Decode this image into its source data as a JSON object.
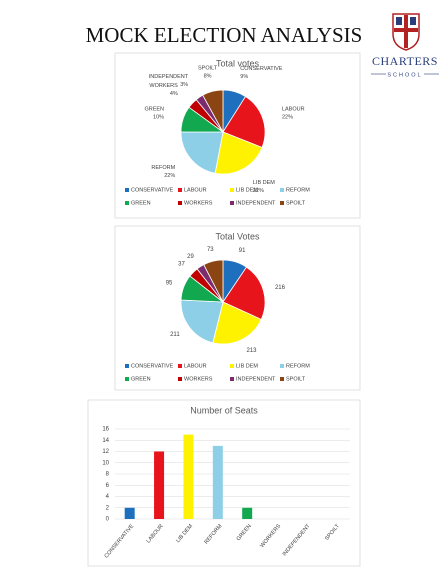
{
  "header": {
    "title": "MOCK ELECTION ANALYSIS",
    "logo_name": "CHARTERS",
    "logo_sub": "SCHOOL"
  },
  "chart_data": [
    {
      "type": "pie",
      "title": "Total votes",
      "categories": [
        "CONSERVATIVE",
        "LABOUR",
        "LIB DEM",
        "REFORM",
        "GREEN",
        "WORKERS",
        "INDEPENDENT",
        "SPOILT"
      ],
      "values": [
        9,
        22,
        22,
        22,
        10,
        4,
        3,
        8
      ],
      "value_labels": [
        "9%",
        "22%",
        "22%",
        "22%",
        "10%",
        "4%",
        "3%",
        "8%"
      ],
      "colors": [
        "#1f6fbf",
        "#e8141c",
        "#fff200",
        "#8ecfe8",
        "#12a84f",
        "#c00000",
        "#7b2c6e",
        "#8b4513"
      ],
      "legend": "bottom"
    },
    {
      "type": "pie",
      "title": "Total Votes",
      "categories": [
        "CONSERVATIVE",
        "LABOUR",
        "LIB DEM",
        "REFORM",
        "GREEN",
        "WORKERS",
        "INDEPENDENT",
        "SPOILT"
      ],
      "values": [
        91,
        216,
        213,
        211,
        95,
        37,
        29,
        73
      ],
      "colors": [
        "#1f6fbf",
        "#e8141c",
        "#fff200",
        "#8ecfe8",
        "#12a84f",
        "#c00000",
        "#7b2c6e",
        "#8b4513"
      ],
      "legend": "bottom"
    },
    {
      "type": "bar",
      "title": "Number of Seats",
      "categories": [
        "CONSERVATIVE",
        "LABOUR",
        "LIB DEM",
        "REFORM",
        "GREEN",
        "WORKERS",
        "INDEPENDENT",
        "SPOILT"
      ],
      "values": [
        2,
        12,
        15,
        13,
        2,
        0,
        0,
        0
      ],
      "colors": [
        "#1f6fbf",
        "#e8141c",
        "#fff200",
        "#8ecfe8",
        "#12a84f",
        "#c00000",
        "#7b2c6e",
        "#8b4513"
      ],
      "ylim": [
        0,
        16
      ],
      "yticks": [
        0,
        2,
        4,
        6,
        8,
        10,
        12,
        14,
        16
      ],
      "grid": true
    }
  ]
}
